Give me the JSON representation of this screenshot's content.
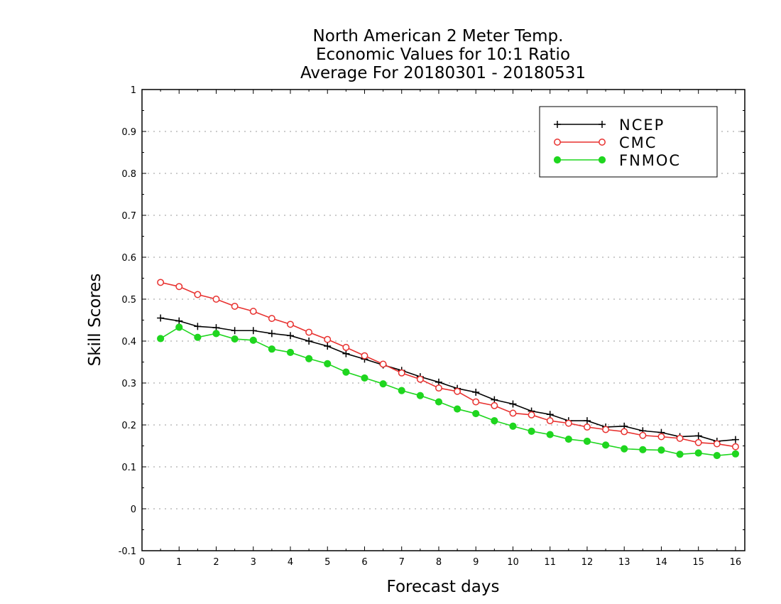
{
  "chart_data": {
    "type": "line",
    "title": [
      "North American 2 Meter Temp.",
      "Economic Values for 10:1 Ratio",
      "Average For 20180301 - 20180531"
    ],
    "xlabel": "Forecast days",
    "ylabel": "Skill Scores",
    "xlim": [
      0,
      16.25
    ],
    "ylim": [
      -0.1,
      1
    ],
    "xticks": [
      "0",
      "1",
      "2",
      "3",
      "4",
      "5",
      "6",
      "7",
      "8",
      "9",
      "10",
      "11",
      "12",
      "13",
      "14",
      "15",
      "16"
    ],
    "yticks": [
      "1",
      "0.9",
      "0.8",
      "0.7",
      "0.6",
      "0.5",
      "0.4",
      "0.3",
      "0.2",
      "0.1",
      "0",
      "-0.1"
    ],
    "grid": true,
    "legend_position": "top-right",
    "x": [
      0.5,
      1,
      1.5,
      2,
      2.5,
      3,
      3.5,
      4,
      4.5,
      5,
      5.5,
      6,
      6.5,
      7,
      7.5,
      8,
      8.5,
      9,
      9.5,
      10,
      10.5,
      11,
      11.5,
      12,
      12.5,
      13,
      13.5,
      14,
      14.5,
      15,
      15.5,
      16
    ],
    "series": [
      {
        "name": "NCEP",
        "color": "#000000",
        "marker": "plus",
        "values": [
          0.455,
          0.448,
          0.435,
          0.432,
          0.425,
          0.425,
          0.418,
          0.413,
          0.4,
          0.388,
          0.37,
          0.357,
          0.343,
          0.33,
          0.315,
          0.302,
          0.287,
          0.278,
          0.26,
          0.25,
          0.233,
          0.225,
          0.21,
          0.21,
          0.195,
          0.197,
          0.186,
          0.182,
          0.172,
          0.174,
          0.161,
          0.165
        ]
      },
      {
        "name": "CMC",
        "color": "#e8312f",
        "marker": "open-circle",
        "values": [
          0.54,
          0.53,
          0.511,
          0.5,
          0.483,
          0.471,
          0.454,
          0.44,
          0.421,
          0.404,
          0.385,
          0.365,
          0.345,
          0.324,
          0.309,
          0.288,
          0.28,
          0.255,
          0.246,
          0.228,
          0.224,
          0.21,
          0.204,
          0.195,
          0.189,
          0.184,
          0.175,
          0.172,
          0.168,
          0.158,
          0.155,
          0.148
        ]
      },
      {
        "name": "FNMOC",
        "color": "#1fd61f",
        "marker": "filled-circle",
        "values": [
          0.406,
          0.433,
          0.409,
          0.418,
          0.405,
          0.402,
          0.381,
          0.373,
          0.358,
          0.346,
          0.326,
          0.312,
          0.298,
          0.282,
          0.27,
          0.255,
          0.238,
          0.227,
          0.21,
          0.197,
          0.185,
          0.177,
          0.166,
          0.161,
          0.152,
          0.143,
          0.141,
          0.14,
          0.13,
          0.133,
          0.127,
          0.131
        ]
      }
    ]
  }
}
